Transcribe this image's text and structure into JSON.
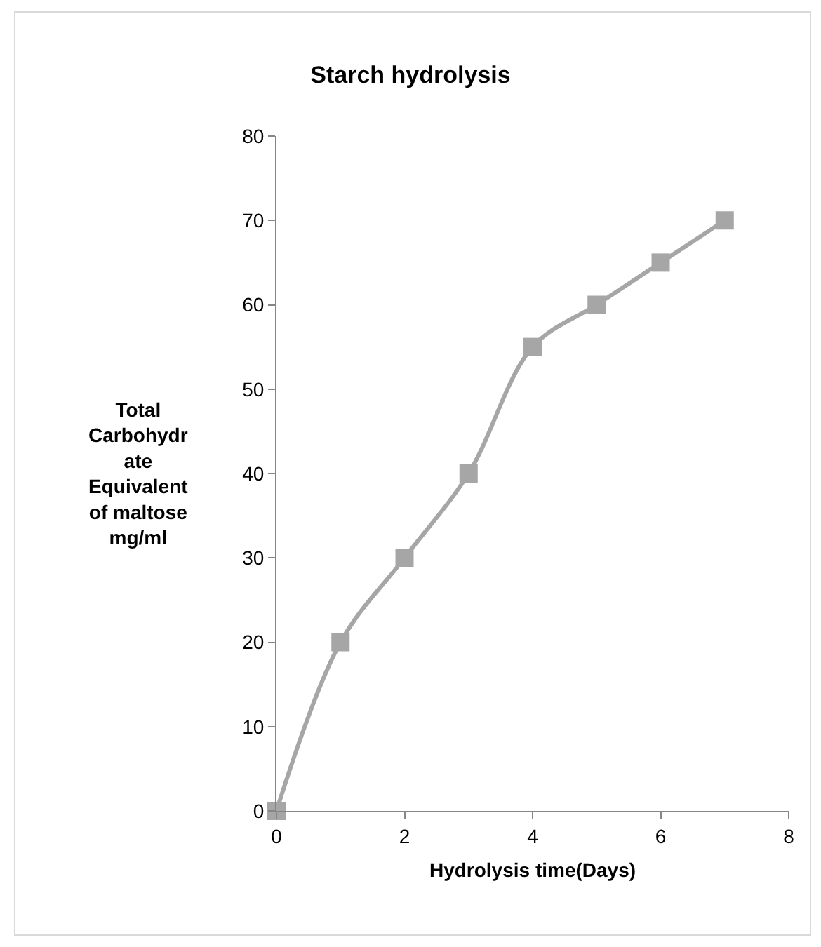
{
  "chart_data": {
    "type": "line",
    "title": "Starch hydrolysis",
    "xlabel": "Hydrolysis time(Days)",
    "ylabel": "Total\nCarbohydr\nate\nEquivalent\nof maltose\nmg/ml",
    "x": [
      0,
      1,
      2,
      3,
      4,
      5,
      6,
      7
    ],
    "series": [
      {
        "color": "#a6a6a6",
        "values": [
          0,
          20,
          30,
          40,
          55,
          60,
          65,
          70
        ]
      }
    ],
    "xlim": [
      0,
      8
    ],
    "xticks": [
      0,
      2,
      4,
      6,
      8
    ],
    "ylim": [
      0,
      80
    ],
    "yticks": [
      0,
      10,
      20,
      30,
      40,
      50,
      60,
      70,
      80
    ],
    "grid": false,
    "legend": false,
    "marker": "square",
    "line_style": "solid"
  }
}
